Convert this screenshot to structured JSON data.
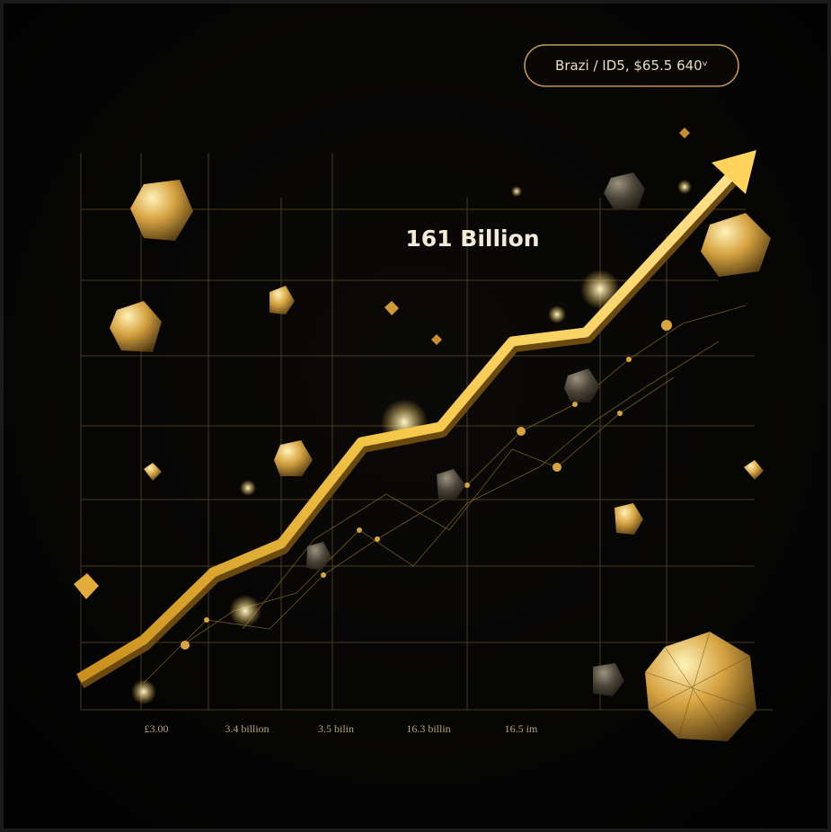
{
  "badge": {
    "text": "Brazi / ID5, $65.5 640ᵛ"
  },
  "headline": {
    "text": "161 Billion"
  },
  "x_labels": [
    "£3.00",
    "3.4 billion",
    "3.5 bilin",
    "16.3 billin",
    "16.5 im"
  ]
}
